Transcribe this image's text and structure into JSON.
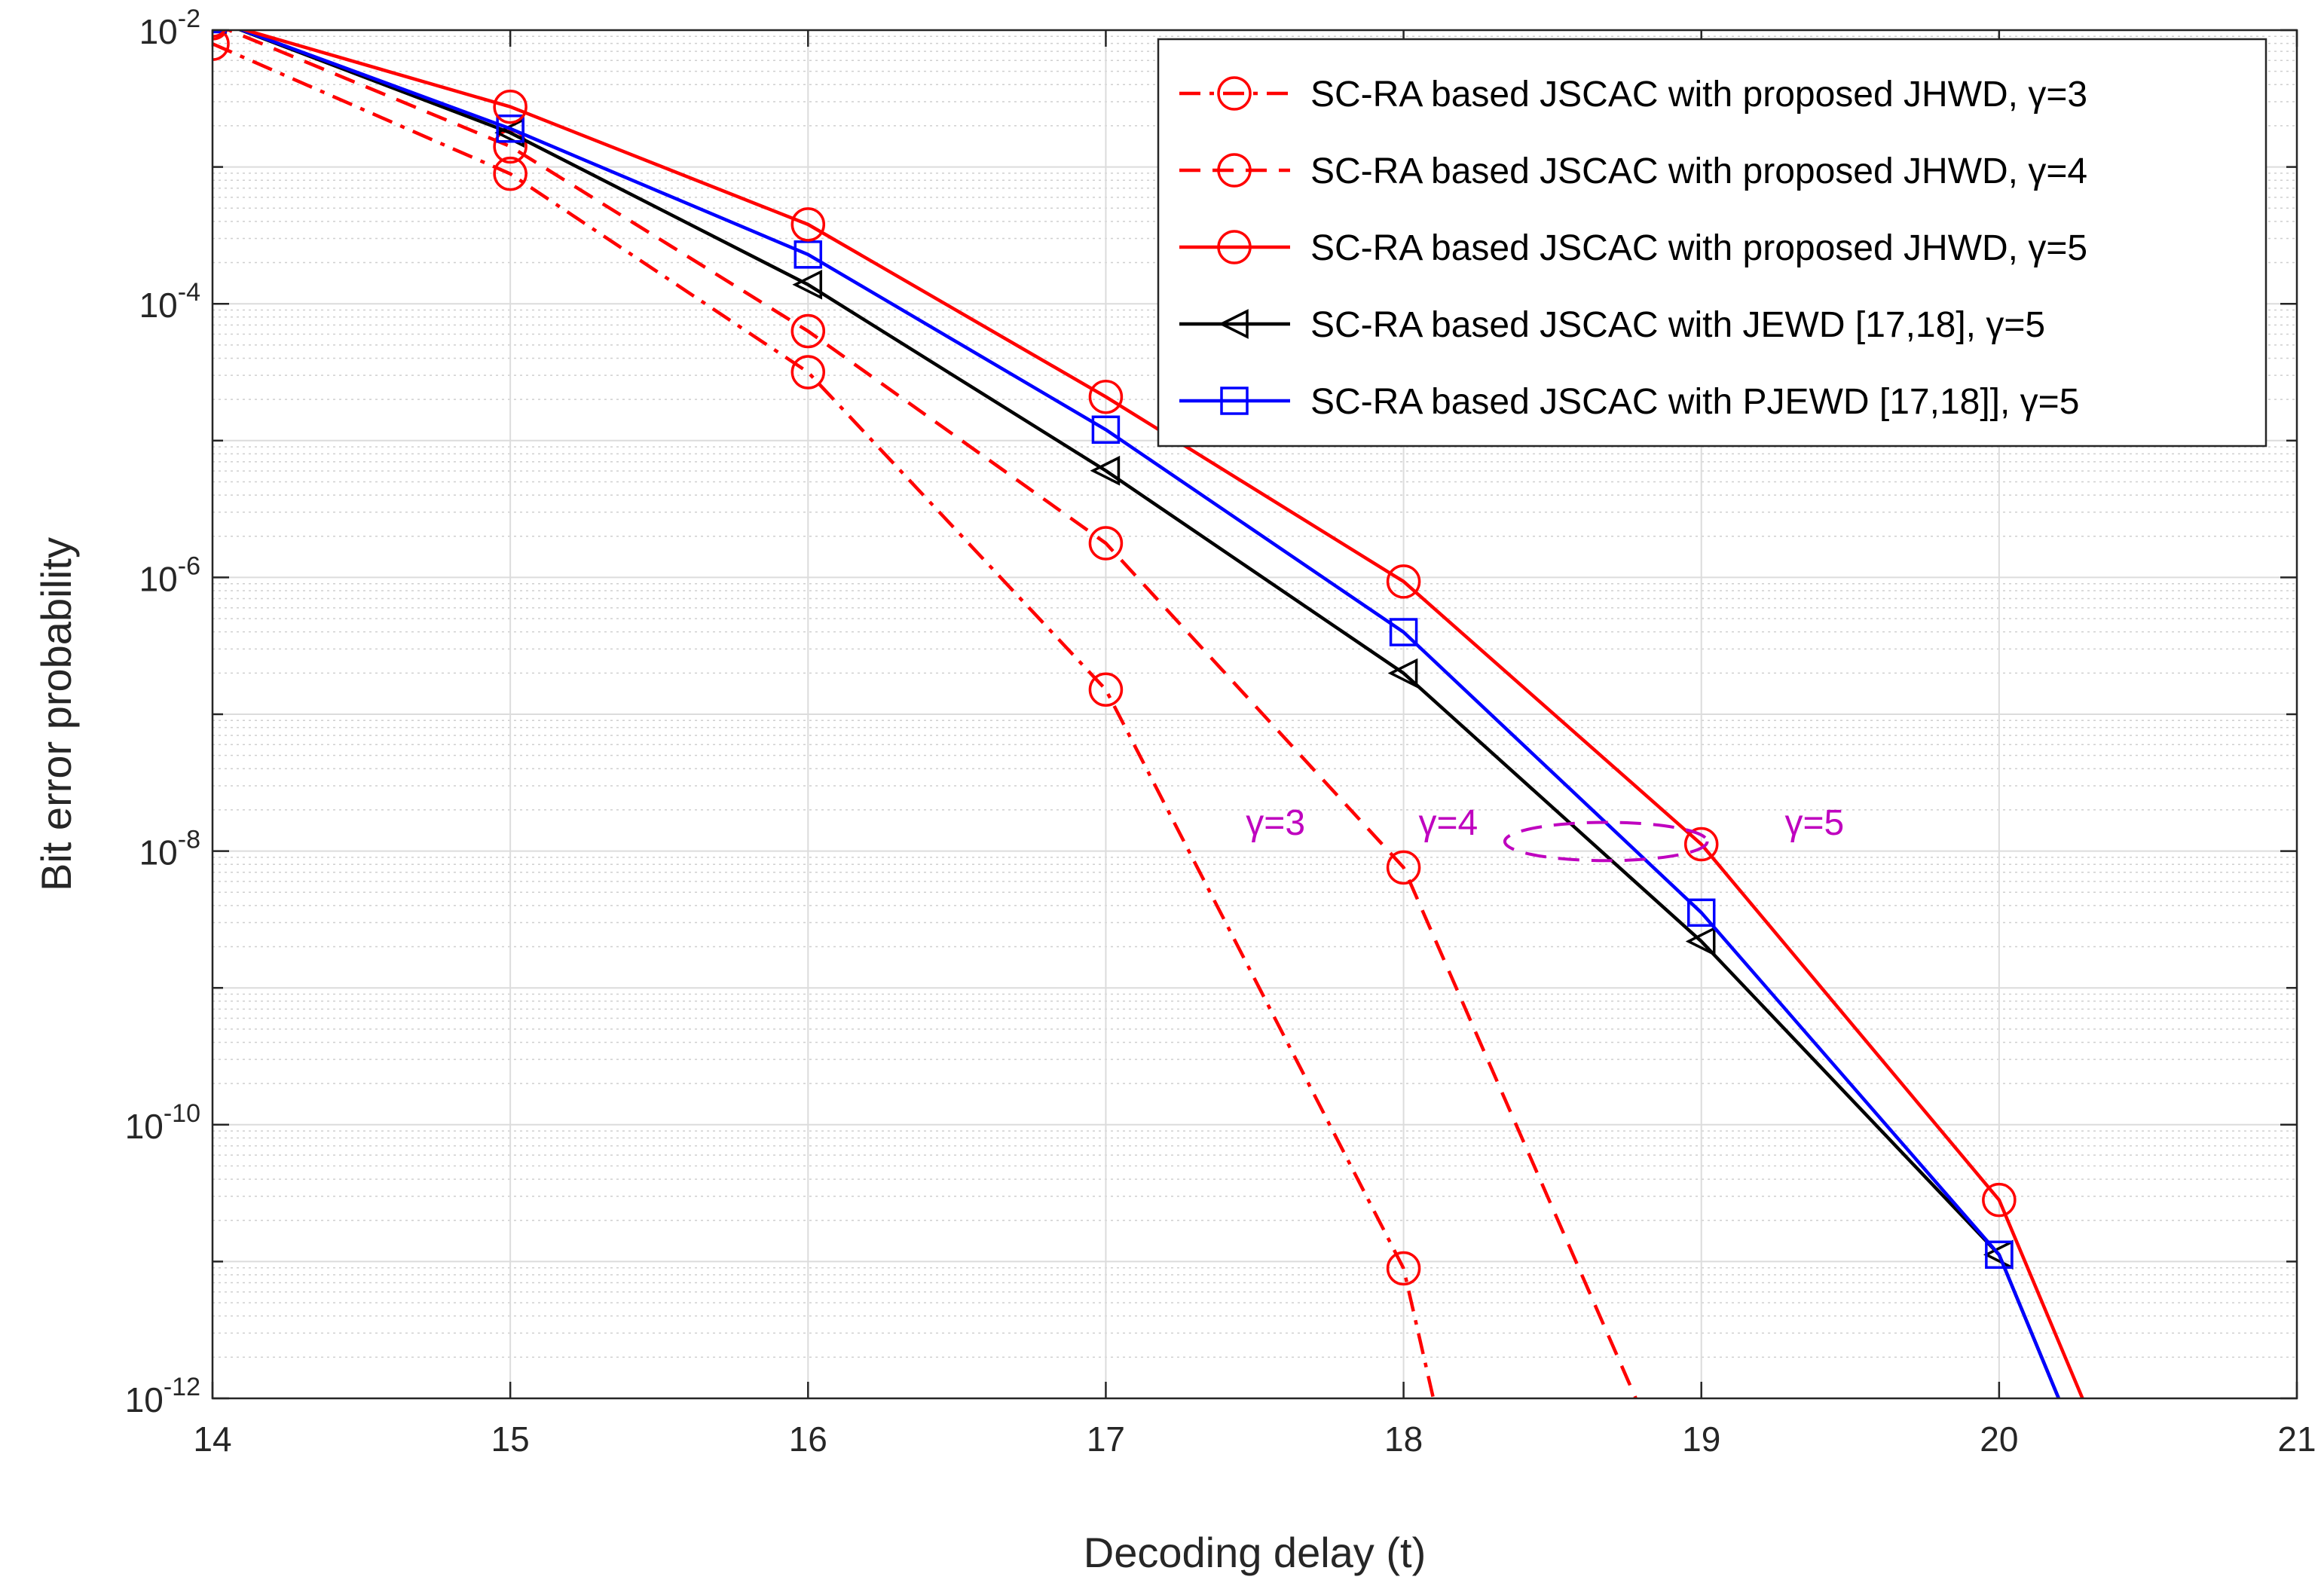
{
  "chart_data": {
    "type": "line",
    "title": "",
    "xlabel": "Decoding delay (t)",
    "ylabel": "Bit error probability",
    "xlim": [
      14,
      21
    ],
    "ylim_log10": [
      -12,
      -2
    ],
    "yscale": "log",
    "grid": true,
    "minor_grid": true,
    "x_ticks": [
      "14",
      "15",
      "16",
      "17",
      "18",
      "19",
      "20",
      "21"
    ],
    "y_ticks": [
      {
        "exp": -2,
        "base": "10",
        "sup": "-2"
      },
      {
        "exp": -4,
        "base": "10",
        "sup": "-4"
      },
      {
        "exp": -6,
        "base": "10",
        "sup": "-6"
      },
      {
        "exp": -8,
        "base": "10",
        "sup": "-8"
      },
      {
        "exp": -10,
        "base": "10",
        "sup": "-10"
      },
      {
        "exp": -12,
        "base": "10",
        "sup": "-12"
      }
    ],
    "legend_position": "top-right",
    "series": [
      {
        "name": "SC-RA based JSCAC with proposed JHWD, γ=3",
        "color": "#ff0000",
        "line_style": "dashdot",
        "marker": "circle",
        "x": [
          14,
          15,
          16,
          17,
          18
        ],
        "log10_y": [
          -2.1,
          -3.05,
          -4.5,
          -6.82,
          -11.05
        ],
        "tail_to": {
          "x": 18.1,
          "log10_y": -12
        }
      },
      {
        "name": "SC-RA based JSCAC with proposed JHWD, γ=4",
        "color": "#ff0000",
        "line_style": "dashed",
        "marker": "circle",
        "x": [
          14,
          15,
          16,
          17,
          18
        ],
        "log10_y": [
          -1.95,
          -2.85,
          -4.2,
          -5.75,
          -8.12
        ],
        "tail_to": {
          "x": 18.78,
          "log10_y": -12
        }
      },
      {
        "name": "SC-RA based JSCAC with proposed JHWD, γ=5",
        "color": "#ff0000",
        "line_style": "solid",
        "marker": "circle",
        "x": [
          14,
          15,
          16,
          17,
          18,
          19,
          20
        ],
        "log10_y": [
          -1.93,
          -2.56,
          -3.42,
          -4.68,
          -6.03,
          -7.95,
          -10.55
        ],
        "tail_to": {
          "x": 20.28,
          "log10_y": -12
        }
      },
      {
        "name": "SC-RA based JSCAC with JEWD [17,18], γ=5",
        "color": "#000000",
        "line_style": "solid",
        "marker": "triangle-left",
        "x": [
          14,
          15,
          16,
          17,
          18,
          19,
          20
        ],
        "log10_y": [
          -1.92,
          -2.75,
          -3.86,
          -5.22,
          -6.7,
          -8.66,
          -10.95
        ],
        "tail_to": {
          "x": 20.2,
          "log10_y": -12
        }
      },
      {
        "name": "SC-RA based JSCAC with PJEWD [17,18]], γ=5",
        "color": "#0000ff",
        "line_style": "solid",
        "marker": "square",
        "x": [
          14,
          15,
          16,
          17,
          18,
          19,
          20
        ],
        "log10_y": [
          -1.92,
          -2.72,
          -3.64,
          -4.92,
          -6.4,
          -8.45,
          -10.95
        ],
        "tail_to": {
          "x": 20.2,
          "log10_y": -12
        }
      }
    ],
    "annotations": [
      {
        "text": "γ=3",
        "x": 17.57,
        "log10_y": -7.88
      },
      {
        "text": "γ=4",
        "x": 18.15,
        "log10_y": -7.88
      },
      {
        "text": "γ=5",
        "x": 19.38,
        "log10_y": -7.88
      }
    ],
    "ellipse_annotation": {
      "cx": 18.68,
      "log10_cy": -7.93,
      "rx_data": 0.34,
      "ry_log10": 0.14,
      "color": "#bf00bf"
    }
  }
}
